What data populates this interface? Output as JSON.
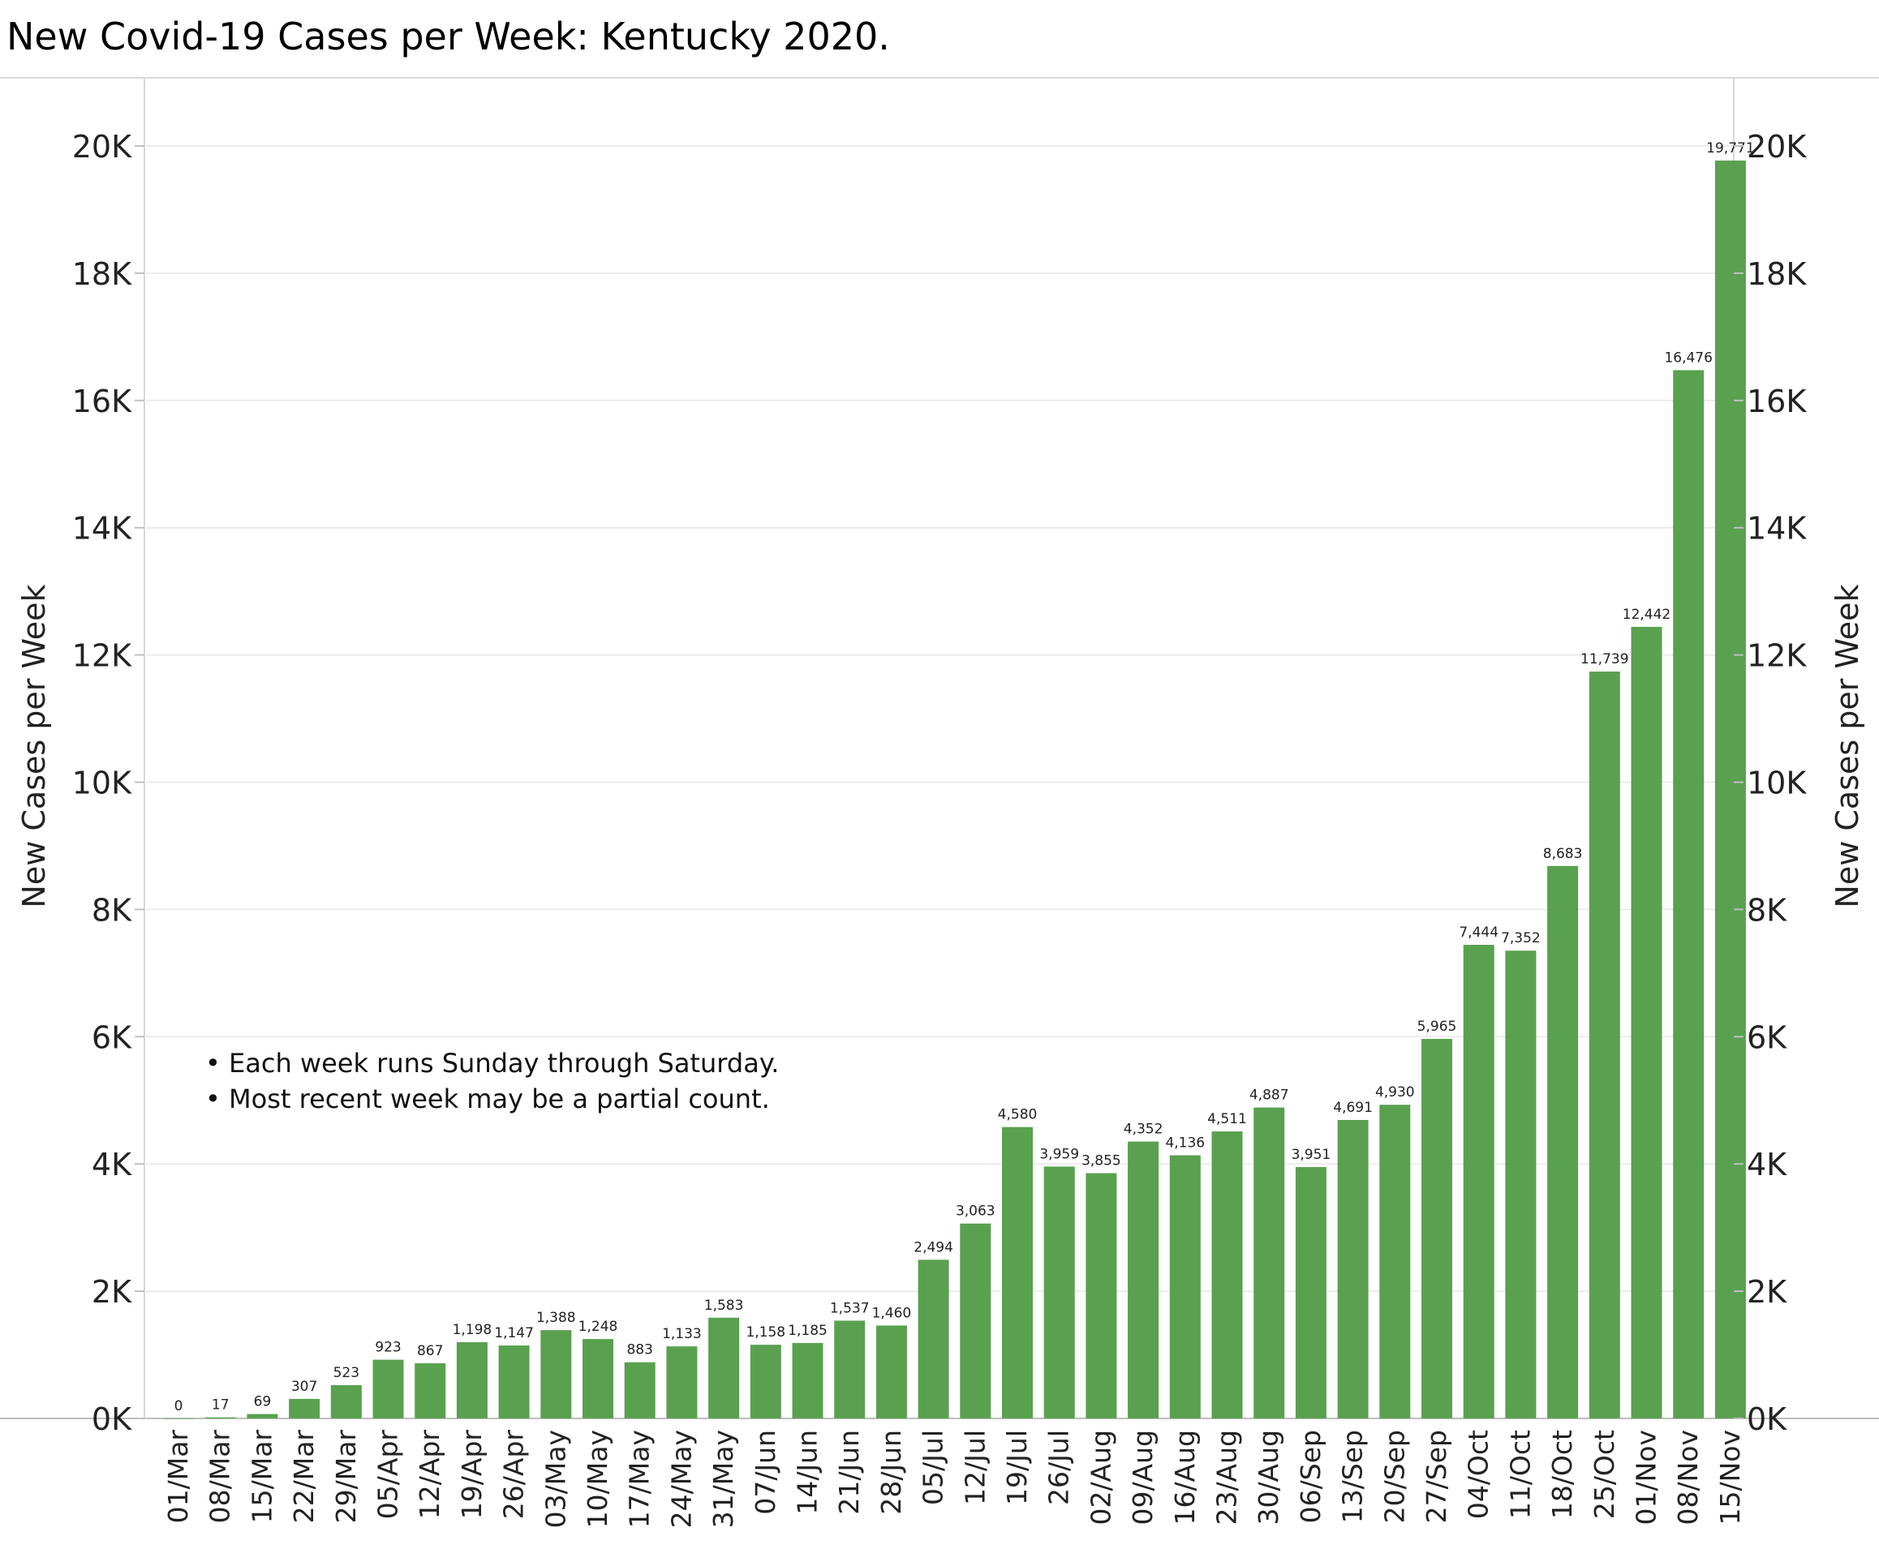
{
  "chart_data": {
    "type": "bar",
    "title": "New Covid-19 Cases per Week:  Kentucky 2020.",
    "ylabel": "New Cases per Week",
    "ylabel_right": "New Cases per Week",
    "ylim": [
      0,
      21000
    ],
    "yticks": [
      0,
      2000,
      4000,
      6000,
      8000,
      10000,
      12000,
      14000,
      16000,
      18000,
      20000
    ],
    "ytick_labels": [
      "0K",
      "2K",
      "4K",
      "6K",
      "8K",
      "10K",
      "12K",
      "14K",
      "16K",
      "18K",
      "20K"
    ],
    "grid": true,
    "bar_color": "#59a14f",
    "categories": [
      "01/Mar",
      "08/Mar",
      "15/Mar",
      "22/Mar",
      "29/Mar",
      "05/Apr",
      "12/Apr",
      "19/Apr",
      "26/Apr",
      "03/May",
      "10/May",
      "17/May",
      "24/May",
      "31/May",
      "07/Jun",
      "14/Jun",
      "21/Jun",
      "28/Jun",
      "05/Jul",
      "12/Jul",
      "19/Jul",
      "26/Jul",
      "02/Aug",
      "09/Aug",
      "16/Aug",
      "23/Aug",
      "30/Aug",
      "06/Sep",
      "13/Sep",
      "20/Sep",
      "27/Sep",
      "04/Oct",
      "11/Oct",
      "18/Oct",
      "25/Oct",
      "01/Nov",
      "08/Nov",
      "15/Nov"
    ],
    "values": [
      0,
      17,
      69,
      307,
      523,
      923,
      867,
      1198,
      1147,
      1388,
      1248,
      883,
      1133,
      1583,
      1158,
      1185,
      1537,
      1460,
      2494,
      3063,
      4580,
      3959,
      3855,
      4352,
      4136,
      4511,
      4887,
      3951,
      4691,
      4930,
      5965,
      7444,
      7352,
      8683,
      11739,
      12442,
      16476,
      19771
    ],
    "data_labels": [
      "0",
      "17",
      "69",
      "307",
      "523",
      "923",
      "867",
      "1,198",
      "1,147",
      "1,388",
      "1,248",
      "883",
      "1,133",
      "1,583",
      "1,158",
      "1,185",
      "1,537",
      "1,460",
      "2,494",
      "3,063",
      "4,580",
      "3,959",
      "3,855",
      "4,352",
      "4,136",
      "4,511",
      "4,887",
      "3,951",
      "4,691",
      "4,930",
      "5,965",
      "7,444",
      "7,352",
      "8,683",
      "11,739",
      "12,442",
      "16,476",
      "19,771"
    ],
    "annotations": [
      "• Each week runs Sunday through Saturday.",
      "• Most recent week may be a partial count."
    ]
  }
}
